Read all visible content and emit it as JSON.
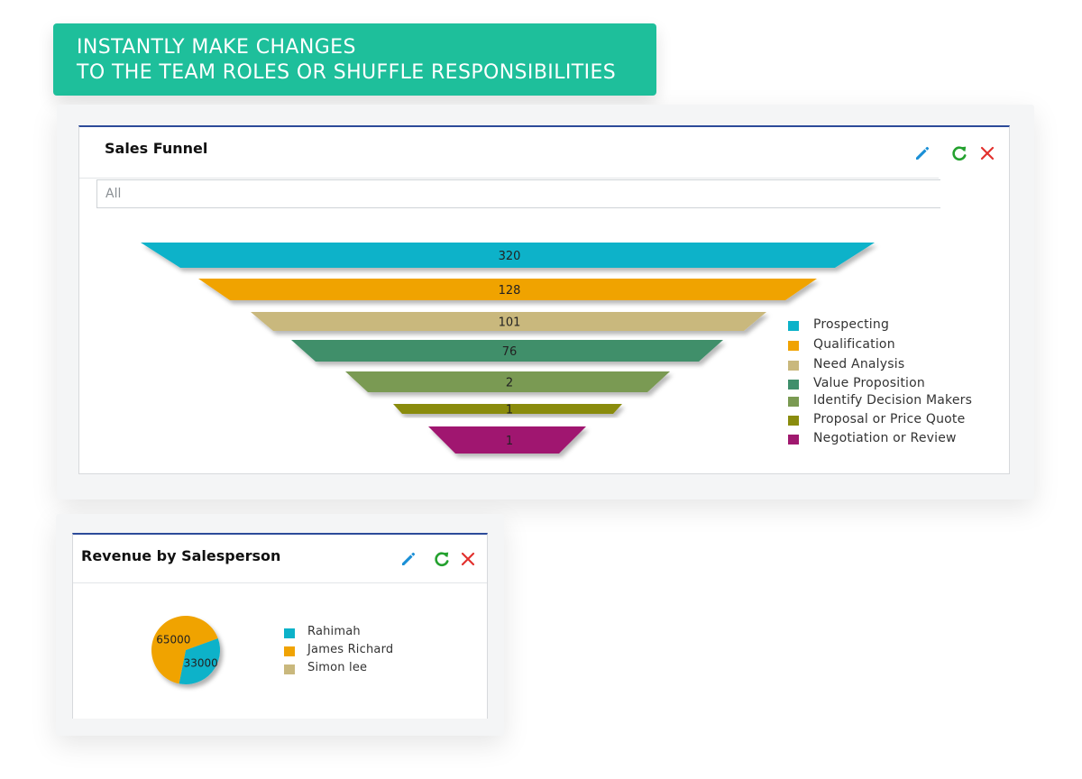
{
  "banner": {
    "line1": "INSTANTLY MAKE CHANGES",
    "line2": "TO THE TEAM ROLES OR SHUFFLE RESPONSIBILITIES"
  },
  "sales_funnel": {
    "title": "Sales Funnel",
    "filter_value": "All",
    "icons": {
      "edit": "pencil-icon",
      "refresh": "refresh-icon",
      "close": "close-icon"
    },
    "chart_data": {
      "type": "funnel",
      "categories": [
        "Prospecting",
        "Qualification",
        "Need Analysis",
        "Value Proposition",
        "Identify Decision Makers",
        "Proposal or Price Quote",
        "Negotiation or Review"
      ],
      "values": [
        320,
        128,
        101,
        76,
        2,
        1,
        1
      ],
      "colors": [
        "#0cb2c9",
        "#f0a303",
        "#c9b87d",
        "#3f8f6b",
        "#7a9a52",
        "#8a8c0e",
        "#a0196f"
      ],
      "legend_position": "right"
    }
  },
  "revenue": {
    "title": "Revenue by Salesperson",
    "icons": {
      "edit": "pencil-icon",
      "refresh": "refresh-icon",
      "close": "close-icon"
    },
    "chart_data": {
      "type": "pie",
      "categories": [
        "Rahimah",
        "James Richard",
        "Simon lee"
      ],
      "values": [
        33000,
        65000,
        0
      ],
      "labels": [
        "33000",
        "65000",
        ""
      ],
      "colors": [
        "#0cb2c9",
        "#f0a303",
        "#c9b87d"
      ],
      "legend_position": "right"
    }
  },
  "colors": {
    "banner": "#1ebf9b",
    "widget_border_top": "#2c4a99",
    "edit_icon": "#1a8fd6",
    "refresh_icon": "#24a12f",
    "close_icon": "#e2312e"
  }
}
